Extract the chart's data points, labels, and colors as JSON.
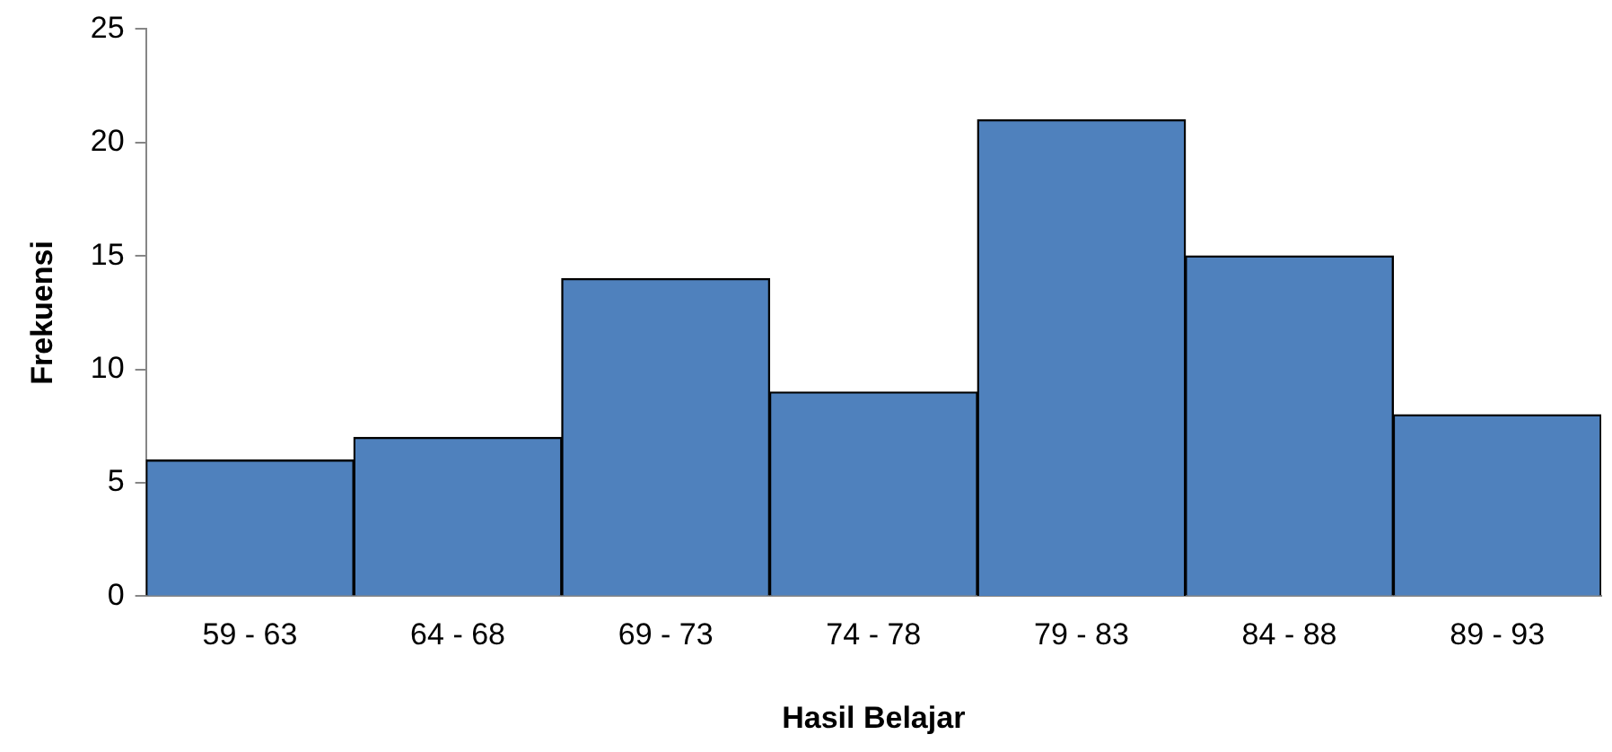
{
  "chart_data": {
    "type": "bar",
    "xlabel": "Hasil Belajar",
    "ylabel": "Frekuensi",
    "categories": [
      "59 - 63",
      "64 - 68",
      "69 - 73",
      "74 - 78",
      "79 - 83",
      "84 - 88",
      "89 - 93"
    ],
    "values": [
      6,
      7,
      14,
      9,
      21,
      15,
      8
    ],
    "color": "#4f81bd",
    "ylim": [
      0,
      25
    ],
    "yticks": [
      0,
      5,
      10,
      15,
      20,
      25
    ],
    "grid": false,
    "legend": false
  }
}
